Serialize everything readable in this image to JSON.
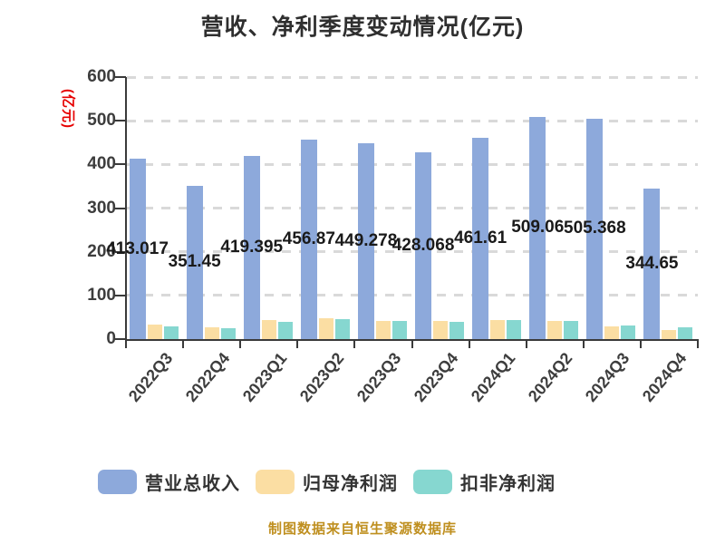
{
  "title": "营收、净利季度变动情况(亿元)",
  "y_axis_label": "(亿元)",
  "caption": "制图数据来自恒生聚源数据库",
  "colors": {
    "revenue_bar": "#8da9db",
    "net_profit_bar": "#fbdea3",
    "non_recurring_bar": "#86d7d0",
    "axis": "#3a3a3a",
    "gridline": "#d9d9d9",
    "title_text": "#2f2f2f",
    "y_axis_label_text": "#e60000",
    "caption_text": "#bf8f1f"
  },
  "chart_data": {
    "type": "bar",
    "title": "营收、净利季度变动情况(亿元)",
    "ylabel": "(亿元)",
    "xlabel": "",
    "ylim": [
      0,
      600
    ],
    "yticks": [
      0,
      100,
      200,
      300,
      400,
      500,
      600
    ],
    "grid": "horizontal dashed",
    "legend_position": "bottom",
    "categories": [
      "2022Q3",
      "2022Q4",
      "2023Q1",
      "2023Q2",
      "2023Q3",
      "2023Q4",
      "2024Q1",
      "2024Q2",
      "2024Q3",
      "2024Q4"
    ],
    "series": [
      {
        "name": "营业总收入",
        "color": "#8da9db",
        "values": [
          413.017,
          351.45,
          419.395,
          456.87,
          449.278,
          428.068,
          461.61,
          509.06,
          505.368,
          344.65
        ],
        "data_labels": [
          "413.017",
          "351.45",
          "419.395",
          "456.87",
          "449.278",
          "428.068",
          "461.61",
          "509.06",
          "505.368",
          "344.65"
        ]
      },
      {
        "name": "归母净利润",
        "color": "#fbdea3",
        "values": [
          33,
          27,
          44,
          48,
          42,
          42,
          44,
          41,
          30,
          21
        ],
        "data_labels": null
      },
      {
        "name": "扣非净利润",
        "color": "#86d7d0",
        "values": [
          30,
          24,
          40,
          46,
          42,
          40,
          43,
          42,
          31,
          27
        ],
        "data_labels": null
      }
    ]
  },
  "legend": {
    "items": [
      {
        "label": "营业总收入",
        "color": "#8da9db"
      },
      {
        "label": "归母净利润",
        "color": "#fbdea3"
      },
      {
        "label": "扣非净利润",
        "color": "#86d7d0"
      }
    ]
  }
}
